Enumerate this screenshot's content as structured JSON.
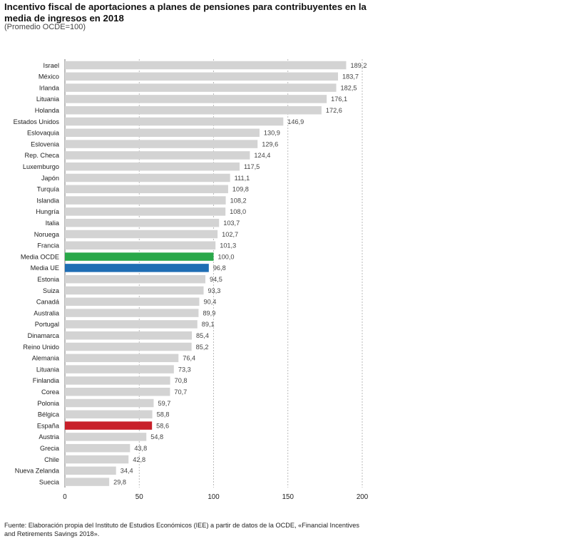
{
  "title": "Incentivo fiscal de aportaciones a planes de pensiones para contribuyentes en la media de ingresos en 2018",
  "subtitle": "(Promedio OCDE=100)",
  "source": "Fuente: Elaboración propia del Instituto de Estudios Económicos (IEE) a partir de datos de la OCDE, «Financial Incentives and Retirements Savings 2018».",
  "colors": {
    "default": "#d3d3d3",
    "oecd": "#2aa84a",
    "eu": "#1f6eb4",
    "spain": "#c8202a"
  },
  "chart_data": {
    "type": "bar",
    "orientation": "horizontal",
    "title": "Incentivo fiscal de aportaciones a planes de pensiones para contribuyentes en la media de ingresos en 2018",
    "subtitle": "(Promedio OCDE=100)",
    "xlim": [
      0,
      200
    ],
    "xticks": [
      0,
      50,
      100,
      150,
      200
    ],
    "grid": "vertical dashed",
    "categories": [
      "Israel",
      "México",
      "Irlanda",
      "Lituania",
      "Holanda",
      "Estados Unidos",
      "Eslovaquia",
      "Eslovenia",
      "Rep. Checa",
      "Luxemburgo",
      "Japón",
      "Turquía",
      "Islandia",
      "Hungría",
      "Italia",
      "Noruega",
      "Francia",
      "Media OCDE",
      "Media UE",
      "Estonia",
      "Suiza",
      "Canadá",
      "Australia",
      "Portugal",
      "Dinamarca",
      "Reino Unido",
      "Alemania",
      "Lituania",
      "Finlandia",
      "Corea",
      "Polonia",
      "Bélgica",
      "España",
      "Austria",
      "Grecia",
      "Chile",
      "Nueva Zelanda",
      "Suecia"
    ],
    "values": [
      189.2,
      183.7,
      182.5,
      176.1,
      172.6,
      146.9,
      130.9,
      129.6,
      124.4,
      117.5,
      111.1,
      109.8,
      108.2,
      108.0,
      103.7,
      102.7,
      101.3,
      100.0,
      96.8,
      94.5,
      93.3,
      90.4,
      89.9,
      89.1,
      85.4,
      85.2,
      76.4,
      73.3,
      70.8,
      70.7,
      59.7,
      58.8,
      58.6,
      54.8,
      43.8,
      42.8,
      34.4,
      29.8
    ],
    "labels": [
      "189,2",
      "183,7",
      "182,5",
      "176,1",
      "172,6",
      "146,9",
      "130,9",
      "129,6",
      "124,4",
      "117,5",
      "111,1",
      "109,8",
      "108,2",
      "108,0",
      "103,7",
      "102,7",
      "101,3",
      "100,0",
      "96,8",
      "94,5",
      "93,3",
      "90,4",
      "89,9",
      "89,1",
      "85,4",
      "85,2",
      "76,4",
      "73,3",
      "70,8",
      "70,7",
      "59,7",
      "58,8",
      "58,6",
      "54,8",
      "43,8",
      "42,8",
      "34,4",
      "29,8"
    ],
    "highlights": {
      "Media OCDE": "oecd",
      "Media UE": "eu",
      "España": "spain"
    }
  }
}
